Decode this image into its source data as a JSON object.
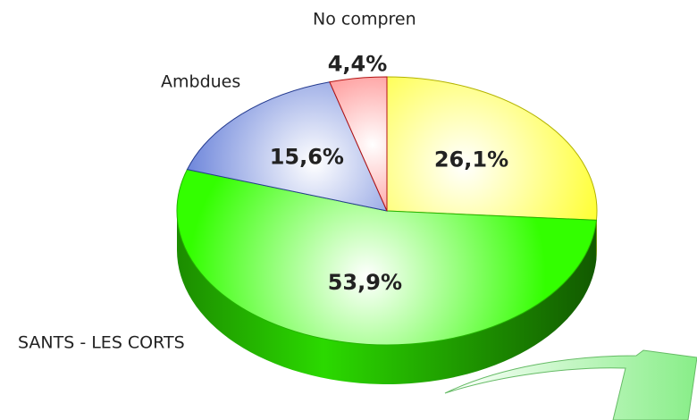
{
  "chart_data": {
    "type": "pie",
    "categories": [
      null,
      "SANTS - LES CORTS",
      "Ambdues",
      "No compren"
    ],
    "values": [
      26.1,
      53.9,
      15.6,
      4.4
    ],
    "value_labels": [
      "26,1%",
      "53,9%",
      "15,6%",
      "4,4%"
    ],
    "colors": [
      "#ffff00",
      "#33ff00",
      "#3355cc",
      "#ff1a1a"
    ]
  }
}
